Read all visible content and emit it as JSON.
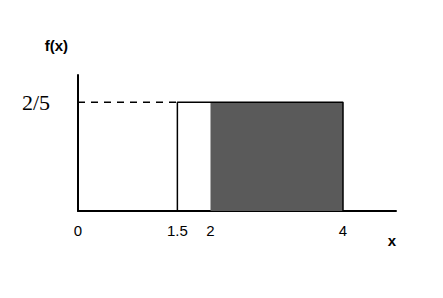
{
  "chart_data": {
    "type": "uniform_density",
    "x_label": "x",
    "y_label": "f(x)",
    "xlim": [
      0,
      4.8
    ],
    "xticks": [
      0,
      1.5,
      2,
      4
    ],
    "ylim": [
      0,
      0.5
    ],
    "yticks": [
      {
        "value": 0.4,
        "label": "2/5"
      }
    ],
    "support": [
      1.5,
      4
    ],
    "density": 0.4,
    "shaded": [
      2,
      4
    ],
    "color": "#5a5a5a"
  }
}
